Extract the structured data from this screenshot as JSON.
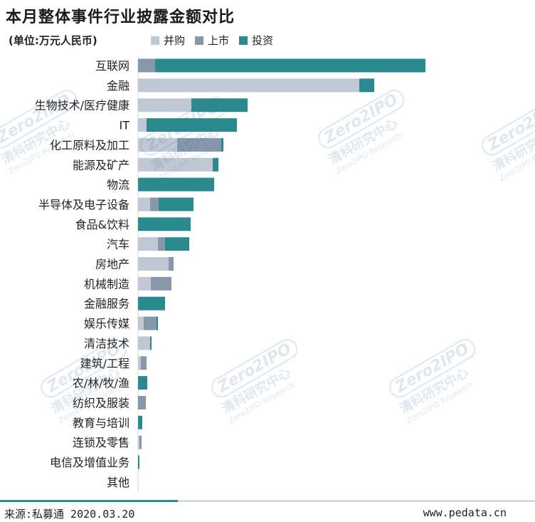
{
  "title": "本月整体事件行业披露金额对比",
  "unit": "(单位:万元人民币)",
  "watermark": {
    "brand": "Zero2IPO",
    "cn": "清科研究中心",
    "en": "Zero2IPO Research"
  },
  "source": "来源:私募通 2020.03.20",
  "website": "www.pedata.cn",
  "colors": {
    "并购": "#c0c8d4",
    "上市": "#8898ab",
    "投资": "#2a8a8e"
  },
  "chart_data": {
    "type": "bar",
    "orientation": "horizontal",
    "stacked": true,
    "categories": [
      "互联网",
      "金融",
      "生物技术/医疗健康",
      "IT",
      "化工原料及加工",
      "能源及矿产",
      "物流",
      "半导体及电子设备",
      "食品&饮料",
      "汽车",
      "房地产",
      "机械制造",
      "金融服务",
      "娱乐传媒",
      "清洁技术",
      "建筑/工程",
      "农/林/牧/渔",
      "纺织及服装",
      "教育与培训",
      "连锁及零售",
      "电信及增值业务",
      "其他"
    ],
    "series": [
      {
        "name": "并购",
        "values": [
          0,
          311,
          75,
          12,
          55,
          105,
          0,
          17,
          0,
          28,
          43,
          18,
          0,
          8,
          17,
          4,
          0,
          0,
          0,
          2,
          0,
          0
        ]
      },
      {
        "name": "上市",
        "values": [
          24,
          0,
          0,
          0,
          62,
          0,
          0,
          12,
          0,
          10,
          7,
          29,
          0,
          18,
          0,
          8,
          0,
          11,
          0,
          3,
          0,
          0
        ]
      },
      {
        "name": "投资",
        "values": [
          380,
          21,
          79,
          127,
          3,
          8,
          107,
          49,
          74,
          34,
          0,
          0,
          38,
          2,
          2,
          0,
          13,
          0,
          6,
          0,
          2,
          0
        ]
      }
    ],
    "legend_position": "top",
    "grid": false
  }
}
